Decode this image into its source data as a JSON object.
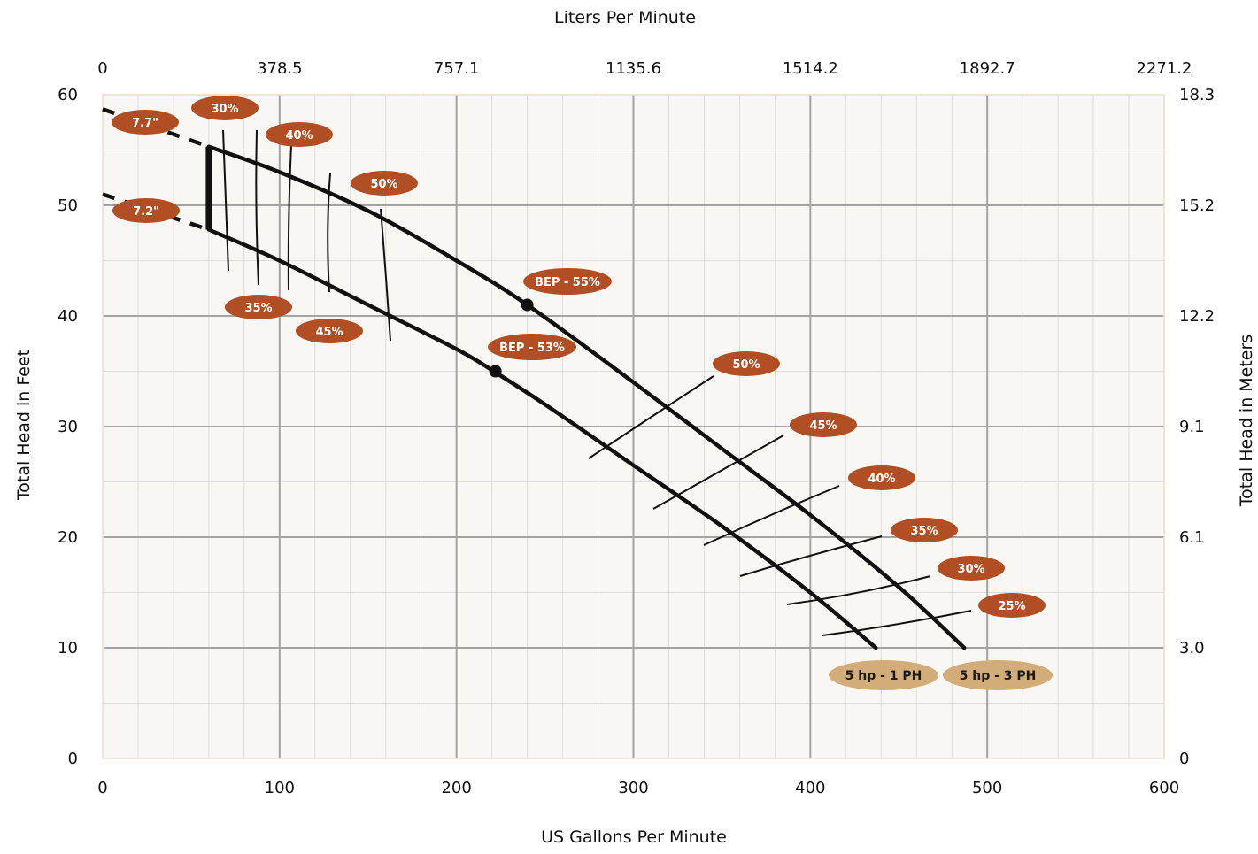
{
  "chart_data": {
    "type": "line",
    "x_bottom_label": "US Gallons Per Minute",
    "x_top_label": "Liters Per Minute",
    "y_left_label": "Total Head in Feet",
    "y_right_label": "Total Head in Meters",
    "xlim": [
      0,
      600
    ],
    "ylim": [
      0,
      60
    ],
    "x_ticks": [
      0,
      100,
      200,
      300,
      400,
      500,
      600
    ],
    "x_top_ticks": [
      {
        "x": 0,
        "label": "0"
      },
      {
        "x": 100,
        "label": "378.5"
      },
      {
        "x": 200,
        "label": "757.1"
      },
      {
        "x": 300,
        "label": "1135.6"
      },
      {
        "x": 400,
        "label": "1514.2"
      },
      {
        "x": 500,
        "label": "1892.7"
      },
      {
        "x": 600,
        "label": "2271.2"
      }
    ],
    "y_ticks": [
      0,
      10,
      20,
      30,
      40,
      50,
      60
    ],
    "y_right_ticks": [
      {
        "y": 0,
        "label": "0"
      },
      {
        "y": 10,
        "label": "3.0"
      },
      {
        "y": 20,
        "label": "6.1"
      },
      {
        "y": 30,
        "label": "9.1"
      },
      {
        "y": 40,
        "label": "12.2"
      },
      {
        "y": 50,
        "label": "15.2"
      },
      {
        "y": 60,
        "label": "18.3"
      }
    ],
    "grid": true,
    "series": [
      {
        "name": "5 hp - 3 PH",
        "impeller_label": "7.7\"",
        "x": [
          60,
          100,
          150,
          200,
          240,
          300,
          350,
          400,
          450,
          487
        ],
        "y": [
          55.3,
          53.0,
          49.5,
          45.0,
          41.0,
          34.0,
          28.0,
          22.0,
          15.5,
          10.0
        ],
        "dashed_start": {
          "x": [
            0,
            60
          ],
          "y": [
            58.7,
            55.3
          ]
        }
      },
      {
        "name": "5 hp - 1 PH",
        "impeller_label": "7.2\"",
        "x": [
          60,
          100,
          150,
          200,
          222,
          250,
          300,
          350,
          400,
          437
        ],
        "y": [
          47.8,
          45.0,
          41.0,
          37.0,
          34.9,
          32.0,
          26.5,
          21.0,
          15.0,
          10.0
        ],
        "dashed_start": {
          "x": [
            0,
            60
          ],
          "y": [
            51.0,
            47.8
          ]
        }
      }
    ],
    "bep_points": [
      {
        "x": 240,
        "y": 41,
        "label": "BEP - 55%"
      },
      {
        "x": 222,
        "y": 35,
        "label": "BEP - 53%"
      }
    ],
    "efficiency_labels_upper": [
      "30%",
      "40%",
      "50%"
    ],
    "efficiency_labels_lower": [
      "35%",
      "45%"
    ],
    "efficiency_labels_right": [
      "50%",
      "45%",
      "40%",
      "35%",
      "30%",
      "25%"
    ],
    "colors": {
      "plot_bg": "#f9f7f3",
      "pill": "#b24e23",
      "pill_light": "#d3ad79",
      "major_grid": "#a3a3a3",
      "minor_grid": "#dcdcdc",
      "border": "#f0dcc4",
      "curve": "#111111"
    }
  }
}
